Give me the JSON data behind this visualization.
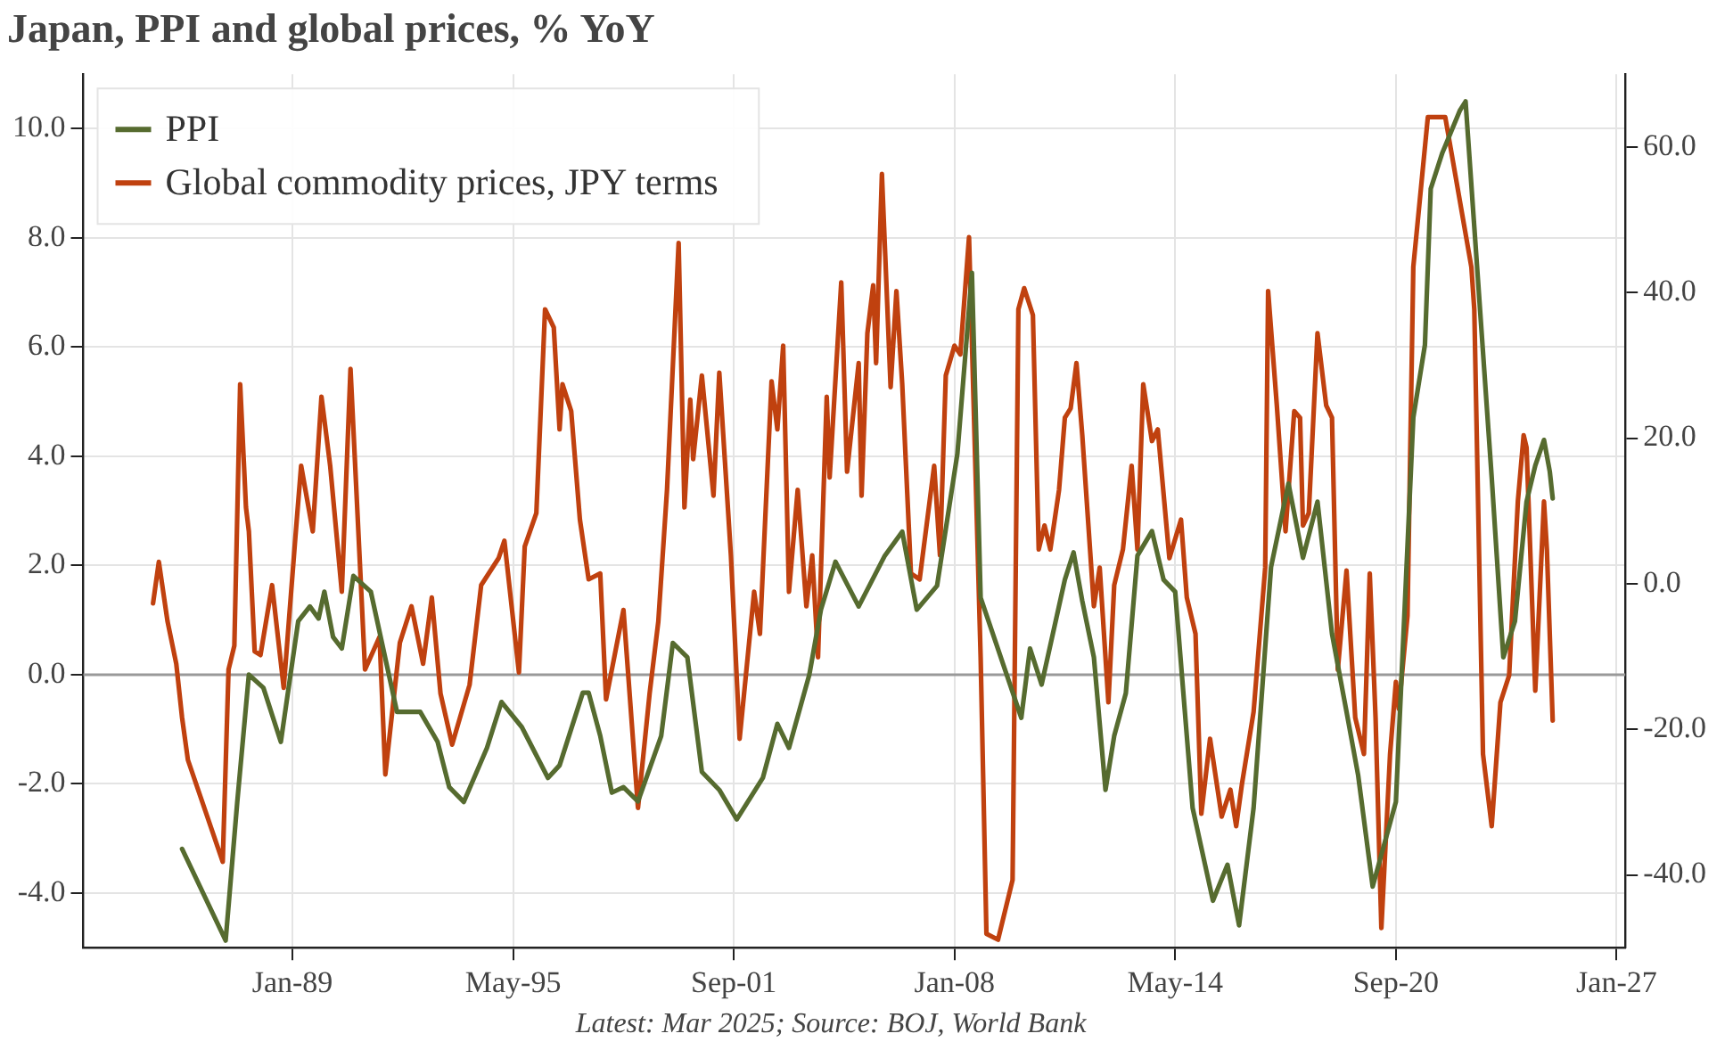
{
  "chart_data": {
    "type": "line",
    "title": "Japan, PPI and global prices, % YoY",
    "annotations": [
      "Latest: Mar 2025; Source: BOJ, World Bank"
    ],
    "xlim": [
      "1983-01",
      "2027-04"
    ],
    "xticks": [
      {
        "value": "1989-01",
        "label": "Jan-89"
      },
      {
        "value": "1995-05",
        "label": "May-95"
      },
      {
        "value": "2001-09",
        "label": "Sep-01"
      },
      {
        "value": "2008-01",
        "label": "Jan-08"
      },
      {
        "value": "2014-05",
        "label": "May-14"
      },
      {
        "value": "2020-09",
        "label": "Sep-20"
      },
      {
        "value": "2027-01",
        "label": "Jan-27"
      }
    ],
    "ylim": [
      -5,
      11
    ],
    "yticks": [
      {
        "value": -4,
        "label": "-4.0"
      },
      {
        "value": -2,
        "label": "-2.0"
      },
      {
        "value": 0,
        "label": "0.0"
      },
      {
        "value": 2,
        "label": "2.0"
      },
      {
        "value": 4,
        "label": "4.0"
      },
      {
        "value": 6,
        "label": "6.0"
      },
      {
        "value": 8,
        "label": "8.0"
      },
      {
        "value": 10,
        "label": "10.0"
      }
    ],
    "y2lim": [
      -50,
      70
    ],
    "y2ticks": [
      {
        "value": -40,
        "label": "-40.0"
      },
      {
        "value": -20,
        "label": "-20.0"
      },
      {
        "value": 0,
        "label": "0.0"
      },
      {
        "value": 20,
        "label": "20.0"
      },
      {
        "value": 40,
        "label": "40.0"
      },
      {
        "value": 60,
        "label": "60.0"
      }
    ],
    "grid": true,
    "legend": "top left",
    "ref_lines": [
      {
        "axis": "y",
        "value": 0,
        "color": "#999999"
      }
    ],
    "series": [
      {
        "name": "PPI",
        "color": "#566b2f",
        "x": [
          "1985-11",
          "1986-04",
          "1987-02",
          "1987-06",
          "1987-10",
          "1988-03",
          "1988-09",
          "1989-03",
          "1989-07",
          "1989-10",
          "1989-12",
          "1990-03",
          "1990-06",
          "1990-10",
          "1991-04",
          "1992-01",
          "1992-09",
          "1993-03",
          "1993-07",
          "1993-12",
          "1994-08",
          "1995-01",
          "1995-08",
          "1996-05",
          "1996-09",
          "1997-05",
          "1997-07",
          "1997-11",
          "1998-03",
          "1998-07",
          "1998-12",
          "1999-08",
          "1999-12",
          "2000-05",
          "2000-10",
          "2001-04",
          "2001-10",
          "2002-07",
          "2002-12",
          "2003-04",
          "2003-11",
          "2004-03",
          "2004-08",
          "2005-04",
          "2006-01",
          "2006-07",
          "2006-12",
          "2007-07",
          "2008-02",
          "2008-07",
          "2008-10",
          "2009-02",
          "2009-07",
          "2009-12",
          "2010-03",
          "2010-07",
          "2011-03",
          "2011-06",
          "2011-09",
          "2012-01",
          "2012-05",
          "2012-08",
          "2012-12",
          "2013-04",
          "2013-09",
          "2014-01",
          "2014-05",
          "2014-11",
          "2015-06",
          "2015-11",
          "2016-03",
          "2016-08",
          "2017-02",
          "2017-08",
          "2018-01",
          "2018-06",
          "2018-11",
          "2019-04",
          "2019-08",
          "2020-01",
          "2020-09",
          "2021-03",
          "2021-07",
          "2021-09",
          "2022-01",
          "2022-07",
          "2022-09",
          "2023-06",
          "2023-10",
          "2024-02",
          "2024-06",
          "2024-09",
          "2024-12",
          "2025-02",
          "2025-03"
        ],
        "values": [
          -3.19,
          null,
          -4.87,
          -2.33,
          0.0,
          -0.24,
          -1.23,
          0.98,
          1.25,
          1.03,
          1.52,
          0.69,
          0.48,
          1.81,
          1.52,
          -0.68,
          -0.68,
          -1.23,
          -2.06,
          -2.33,
          -1.34,
          -0.5,
          -0.96,
          -1.89,
          -1.66,
          -0.33,
          -0.33,
          -1.12,
          -2.16,
          -2.06,
          -2.32,
          -1.12,
          0.58,
          0.32,
          -1.78,
          -2.11,
          -2.65,
          -1.89,
          -0.9,
          -1.34,
          0.0,
          1.19,
          2.07,
          1.25,
          2.18,
          2.62,
          1.19,
          1.63,
          4.05,
          7.36,
          1.41,
          null,
          null,
          -0.79,
          0.48,
          -0.18,
          1.74,
          2.24,
          1.35,
          0.32,
          -2.11,
          -1.12,
          -0.34,
          2.18,
          2.63,
          1.74,
          1.52,
          -2.44,
          -4.14,
          -3.48,
          -4.59,
          -2.44,
          1.97,
          3.5,
          2.14,
          3.17,
          0.75,
          -0.68,
          -1.84,
          -3.88,
          -2.33,
          4.71,
          6.04,
          8.9,
          9.56,
          10.33,
          10.5,
          3.61,
          0.32,
          0.98,
          3.17,
          3.83,
          4.3,
          3.72,
          3.23
        ]
      },
      {
        "name": "Global commodity prices, JPY terms",
        "color": "#c0410f",
        "axis": "y2",
        "x": [
          "1985-01",
          "1985-03",
          "1985-06",
          "1985-09",
          "1985-11",
          "1986-01",
          "1986-03",
          "1986-10",
          "1987-01",
          "1987-03",
          "1987-05",
          "1987-07",
          "1987-09",
          "1987-10",
          "1987-12",
          "1988-02",
          "1988-06",
          "1988-08",
          "1988-10",
          "1989-02",
          "1989-04",
          "1989-08",
          "1989-11",
          "1990-02",
          "1990-06",
          "1990-09",
          "1991-02",
          "1991-07",
          "1991-09",
          "1992-02",
          "1992-06",
          "1992-10",
          "1993-01",
          "1993-04",
          "1993-08",
          "1994-02",
          "1994-06",
          "1994-12",
          "1995-02",
          "1995-07",
          "1995-09",
          "1996-01",
          "1996-04",
          "1996-07",
          "1996-09",
          "1996-10",
          "1997-01",
          "1997-04",
          "1997-07",
          "1997-11",
          "1998-01",
          "1998-07",
          "1998-12",
          "1999-04",
          "1999-07",
          "1999-10",
          "2000-02",
          "2000-04",
          "2000-06",
          "2000-07",
          "2000-10",
          "2001-02",
          "2001-04",
          "2001-08",
          "2001-11",
          "2002-04",
          "2002-06",
          "2002-10",
          "2002-12",
          "2003-02",
          "2003-04",
          "2003-07",
          "2003-10",
          "2003-12",
          "2004-02",
          "2004-05",
          "2004-06",
          "2004-10",
          "2004-12",
          "2005-04",
          "2005-05",
          "2005-07",
          "2005-09",
          "2005-10",
          "2005-12",
          "2006-03",
          "2006-05",
          "2006-07",
          "2006-10",
          "2007-01",
          "2007-06",
          "2007-08",
          "2007-10",
          "2008-01",
          "2008-03",
          "2008-06",
          "2008-10",
          "2008-12",
          "2009-04",
          "2009-07",
          "2009-09",
          "2009-11",
          "2010-01",
          "2010-04",
          "2010-06",
          "2010-08",
          "2010-10",
          "2011-01",
          "2011-03",
          "2011-05",
          "2011-07",
          "2011-09",
          "2012-01",
          "2012-03",
          "2012-06",
          "2012-08",
          "2012-11",
          "2013-02",
          "2013-04",
          "2013-06",
          "2013-09",
          "2013-11",
          "2014-03",
          "2014-07",
          "2014-09",
          "2014-12",
          "2015-02",
          "2015-05",
          "2015-09",
          "2015-12",
          "2016-02",
          "2016-04",
          "2016-08",
          "2016-12",
          "2017-01",
          "2017-04",
          "2017-07",
          "2017-10",
          "2017-12",
          "2018-01",
          "2018-03",
          "2018-06",
          "2018-09",
          "2018-11",
          "2019-01",
          "2019-04",
          "2019-07",
          "2019-10",
          "2019-12",
          "2020-02",
          "2020-04",
          "2020-07",
          "2020-09",
          "2020-10",
          "2021-01",
          "2021-03",
          "2021-04",
          "2021-07",
          "2021-08",
          "2021-12",
          "2022-02",
          "2022-09",
          "2022-11",
          "2022-12",
          "2023-03",
          "2023-06",
          "2023-09",
          "2023-12",
          "2024-03",
          "2024-05",
          "2024-06",
          "2024-09",
          "2024-12",
          "2025-01",
          "2025-03"
        ],
        "values": [
          -2.7,
          3.0,
          -5.2,
          -11.0,
          -18.4,
          -24.2,
          null,
          null,
          -38.2,
          -11.8,
          -8.5,
          27.4,
          10.5,
          7.2,
          -9.3,
          -9.8,
          -0.2,
          -7.3,
          -14.3,
          6.3,
          16.2,
          7.2,
          25.7,
          16.2,
          -1.1,
          29.5,
          -11.8,
          -7.3,
          -26.2,
          -8.1,
          -3.1,
          -11.0,
          -1.9,
          -15.1,
          -22.1,
          -13.9,
          -0.2,
          3.5,
          5.9,
          -12.2,
          5.1,
          9.7,
          37.7,
          35.2,
          21.2,
          27.4,
          23.7,
          8.8,
          0.6,
          1.4,
          -15.9,
          -3.6,
          -30.8,
          -15.1,
          -5.2,
          12.9,
          46.8,
          10.5,
          25.3,
          17.1,
          28.6,
          12.1,
          29.0,
          3.9,
          -21.3,
          -1.1,
          -6.9,
          27.8,
          21.2,
          32.7,
          -1.1,
          12.9,
          -3.1,
          3.9,
          -10.1,
          25.7,
          14.6,
          41.4,
          15.4,
          30.3,
          12.1,
          34.4,
          41.0,
          30.3,
          56.3,
          27.0,
          40.2,
          27.4,
          1.4,
          0.6,
          16.2,
          3.9,
          28.6,
          32.7,
          31.5,
          47.6,
          -10.1,
          -48.1,
          -48.9,
          null,
          -40.7,
          37.7,
          40.6,
          36.9,
          4.7,
          8.0,
          4.7,
          12.9,
          22.8,
          24.1,
          30.3,
          20.4,
          -3.1,
          2.2,
          -16.3,
          -0.2,
          4.7,
          16.2,
          4.7,
          27.4,
          19.6,
          21.2,
          3.5,
          8.8,
          -1.9,
          -6.9,
          -31.6,
          -21.3,
          -32.0,
          -28.3,
          -33.3,
          -27.5,
          -17.6,
          2.2,
          40.2,
          24.5,
          7.2,
          23.7,
          22.8,
          8.0,
          9.7,
          34.4,
          24.5,
          22.8,
          -11.8,
          1.8,
          -18.4,
          -23.4,
          1.4,
          -18.4,
          -47.3,
          -23.4,
          -13.5,
          -17.2,
          -4.4,
          43.5,
          null,
          null,
          64.1,
          null,
          64.1,
          null,
          43.5,
          37.7,
          -23.4,
          -33.3,
          -16.3,
          -12.6,
          11.3,
          20.4,
          18.7,
          -14.7,
          11.3,
          4.7,
          -18.8
        ]
      }
    ]
  }
}
